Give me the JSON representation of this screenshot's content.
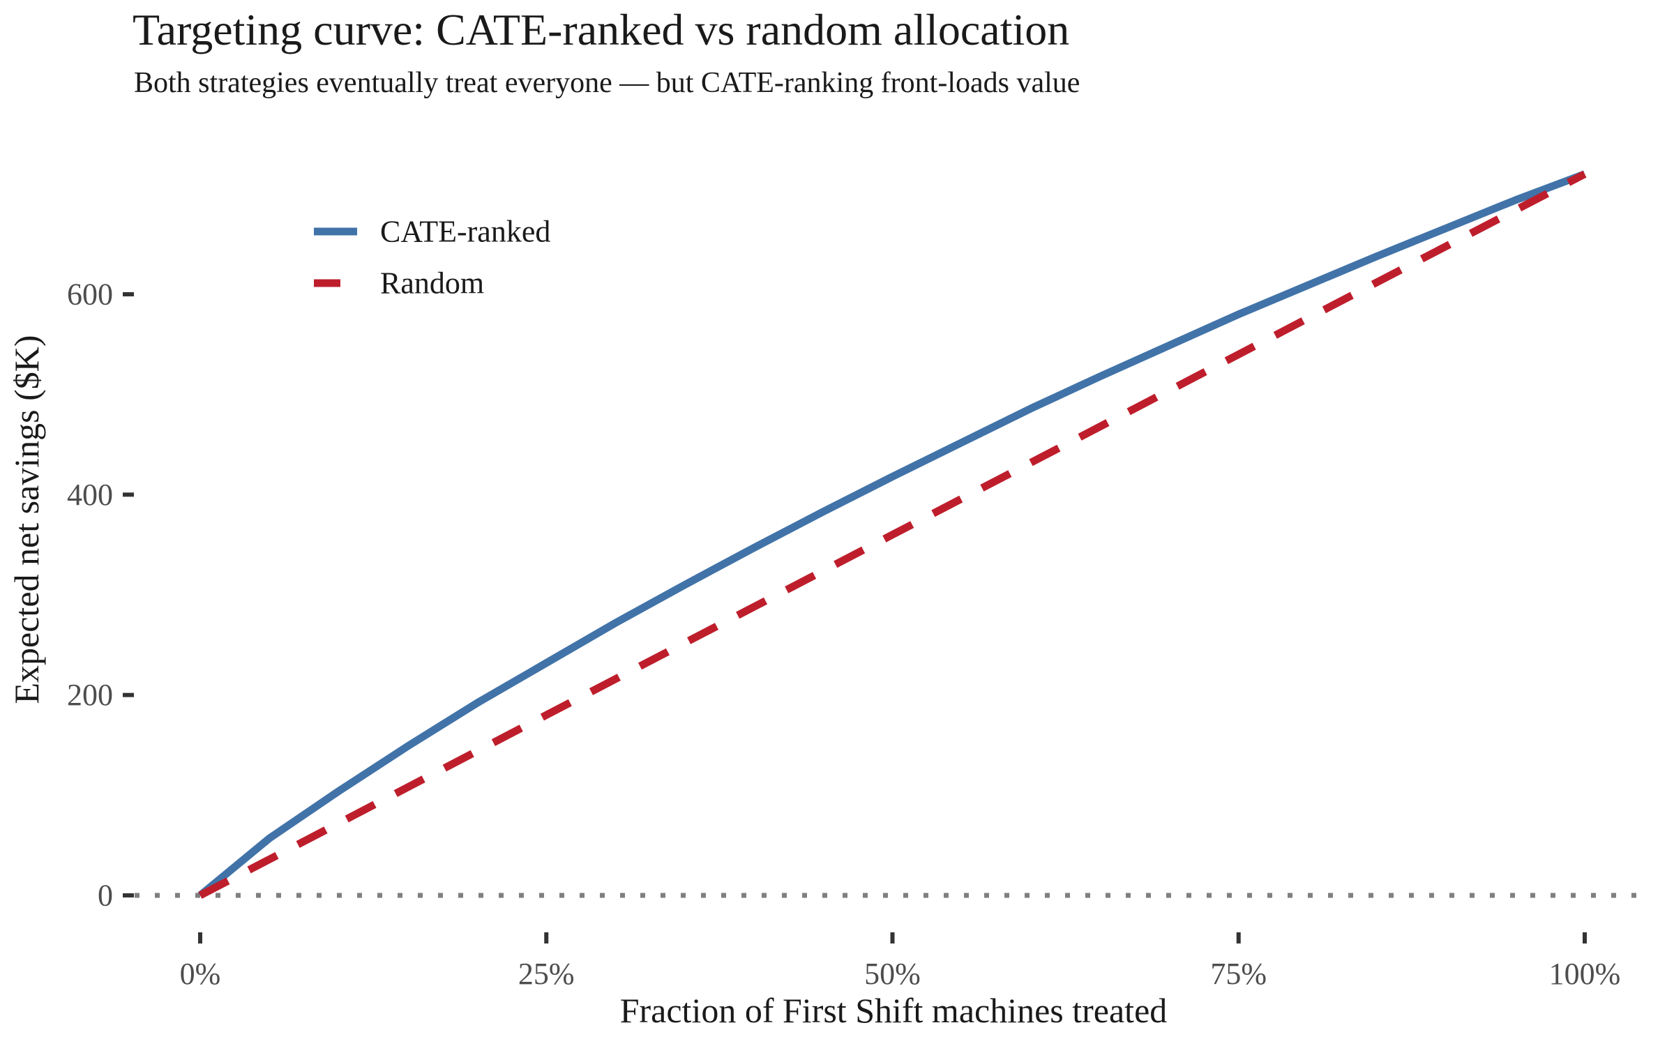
{
  "title": "Targeting curve: CATE-ranked vs random allocation",
  "subtitle": "Both strategies eventually treat everyone — but CATE-ranking front-loads value",
  "legend": {
    "position": "top-left-inside",
    "items": [
      {
        "label": "CATE-ranked",
        "color": "#4173A8",
        "line_style": "solid"
      },
      {
        "label": "Random",
        "color": "#BE1E2C",
        "line_style": "dashed"
      }
    ]
  },
  "axes": {
    "x": {
      "title": "Fraction of First Shift machines treated",
      "tick_labels": [
        "0%",
        "25%",
        "50%",
        "75%",
        "100%"
      ],
      "tick_values": [
        0,
        25,
        50,
        75,
        100
      ]
    },
    "y": {
      "title": "Expected net savings ($K)",
      "tick_labels": [
        "0",
        "200",
        "400",
        "600"
      ],
      "tick_values": [
        0,
        200,
        400,
        600
      ]
    }
  },
  "chart_data": {
    "type": "line",
    "title": "Targeting curve: CATE-ranked vs random allocation",
    "subtitle": "Both strategies eventually treat everyone — but CATE-ranking front-loads value",
    "xlabel": "Fraction of First Shift machines treated",
    "ylabel": "Expected net savings ($K)",
    "xlim": [
      0,
      100
    ],
    "ylim": [
      0,
      720
    ],
    "x_unit": "percent of machines treated",
    "y_unit": "thousand dollars",
    "grid": false,
    "legend_position": "top-left-inside",
    "series": [
      {
        "name": "CATE-ranked",
        "color": "#4173A8",
        "line_style": "solid",
        "x": [
          0,
          5,
          10,
          15,
          20,
          25,
          30,
          35,
          40,
          45,
          50,
          55,
          60,
          65,
          70,
          75,
          80,
          85,
          90,
          95,
          100
        ],
        "y": [
          0,
          57,
          104,
          149,
          192,
          232,
          272,
          310,
          347,
          383,
          418,
          452,
          486,
          518,
          549,
          580,
          609,
          638,
          666,
          694,
          720
        ]
      },
      {
        "name": "Random",
        "color": "#BE1E2C",
        "line_style": "dashed",
        "x": [
          0,
          25,
          50,
          75,
          100
        ],
        "y": [
          0,
          180,
          360,
          540,
          720
        ]
      }
    ],
    "reference_line": {
      "y": 0,
      "style": "dotted",
      "color": "#7F7F7F"
    }
  },
  "colors": {
    "background": "#FFFFFF",
    "cate_ranked": "#4173A8",
    "random": "#BE1E2C",
    "zero_line": "#7F7F7F",
    "tick_mark": "#333333",
    "tick_label": "#4D4D4D",
    "text": "#1A1A1A"
  }
}
